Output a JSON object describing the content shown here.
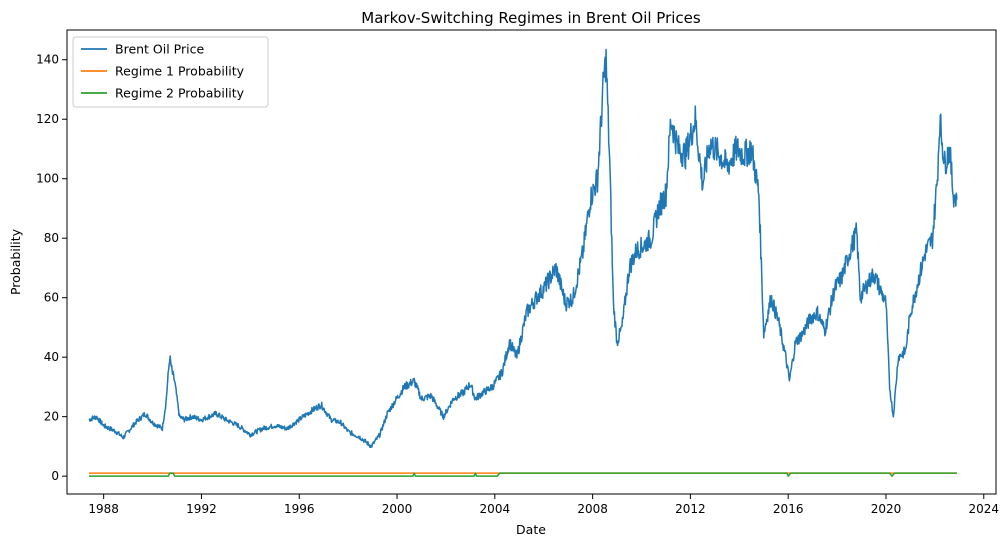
{
  "chart_data": {
    "type": "line",
    "title": "Markov-Switching Regimes in Brent Oil Prices",
    "xlabel": "Date",
    "ylabel": "Probability",
    "xlim": [
      1986.5,
      2024.5
    ],
    "ylim": [
      -6,
      150
    ],
    "grid": false,
    "legend_position": "top-left",
    "x_ticks": [
      1988,
      1992,
      1996,
      2000,
      2004,
      2008,
      2012,
      2016,
      2020,
      2024
    ],
    "y_ticks": [
      0,
      20,
      40,
      60,
      80,
      100,
      120,
      140
    ],
    "series": [
      {
        "name": "Brent Oil Price",
        "color": "#1f77b4",
        "x": [
          1987.4,
          1987.7,
          1988.0,
          1988.5,
          1988.8,
          1989.3,
          1989.7,
          1990.0,
          1990.4,
          1990.55,
          1990.7,
          1990.8,
          1990.9,
          1991.1,
          1991.3,
          1991.6,
          1992.0,
          1992.6,
          1993.0,
          1993.5,
          1994.0,
          1994.5,
          1995.0,
          1995.5,
          1996.0,
          1996.5,
          1996.9,
          1997.3,
          1997.7,
          1998.0,
          1998.5,
          1998.95,
          1999.3,
          1999.6,
          1999.9,
          2000.3,
          2000.7,
          2001.0,
          2001.4,
          2001.9,
          2002.3,
          2002.7,
          2003.0,
          2003.2,
          2003.5,
          2003.9,
          2004.3,
          2004.6,
          2004.9,
          2005.3,
          2005.7,
          2006.0,
          2006.5,
          2006.9,
          2007.2,
          2007.6,
          2007.9,
          2008.2,
          2008.45,
          2008.55,
          2008.7,
          2008.85,
          2009.0,
          2009.2,
          2009.5,
          2009.8,
          2010.0,
          2010.4,
          2010.7,
          2011.0,
          2011.2,
          2011.5,
          2011.8,
          2012.2,
          2012.5,
          2012.8,
          2013.2,
          2013.5,
          2013.9,
          2014.2,
          2014.5,
          2014.8,
          2015.0,
          2015.3,
          2015.6,
          2015.9,
          2016.05,
          2016.3,
          2016.6,
          2016.9,
          2017.2,
          2017.5,
          2017.9,
          2018.2,
          2018.5,
          2018.8,
          2018.95,
          2019.2,
          2019.5,
          2019.8,
          2020.0,
          2020.15,
          2020.3,
          2020.5,
          2020.8,
          2021.0,
          2021.3,
          2021.6,
          2021.9,
          2022.1,
          2022.2,
          2022.4,
          2022.6,
          2022.75,
          2022.9
        ],
        "values": [
          19,
          20,
          17,
          15,
          13,
          18,
          21,
          18,
          16,
          25,
          40,
          35,
          32,
          20,
          19,
          20,
          19,
          21,
          19,
          17,
          14,
          16,
          17,
          16,
          19,
          22,
          24,
          19,
          18,
          15,
          13,
          10,
          14,
          21,
          25,
          30,
          32,
          26,
          27,
          20,
          26,
          28,
          31,
          26,
          28,
          30,
          35,
          45,
          40,
          55,
          60,
          63,
          70,
          58,
          60,
          75,
          93,
          100,
          133,
          140,
          105,
          58,
          45,
          50,
          70,
          76,
          77,
          80,
          90,
          95,
          120,
          110,
          108,
          120,
          98,
          112,
          108,
          104,
          110,
          108,
          110,
          95,
          48,
          60,
          52,
          40,
          32,
          45,
          48,
          53,
          55,
          49,
          63,
          67,
          75,
          82,
          60,
          64,
          68,
          62,
          58,
          30,
          20,
          40,
          42,
          55,
          65,
          75,
          80,
          100,
          120,
          105,
          110,
          95,
          93
        ]
      },
      {
        "name": "Regime 1 Probability",
        "color": "#ff7f0e",
        "x": [
          1987.4,
          2022.9
        ],
        "values": [
          1,
          1
        ]
      },
      {
        "name": "Regime 2 Probability",
        "color": "#2ca02c",
        "x": [
          1987.4,
          1990.65,
          1990.7,
          1990.85,
          1990.9,
          2000.65,
          2000.7,
          2000.75,
          2003.15,
          2003.2,
          2003.25,
          2004.1,
          2004.2,
          2015.95,
          2016.0,
          2016.1,
          2020.15,
          2020.25,
          2020.35,
          2022.9
        ],
        "values": [
          0,
          0,
          1,
          1,
          0,
          0,
          1,
          0,
          0,
          1,
          0,
          0,
          1,
          1,
          0,
          1,
          1,
          0,
          1,
          1
        ]
      }
    ]
  }
}
